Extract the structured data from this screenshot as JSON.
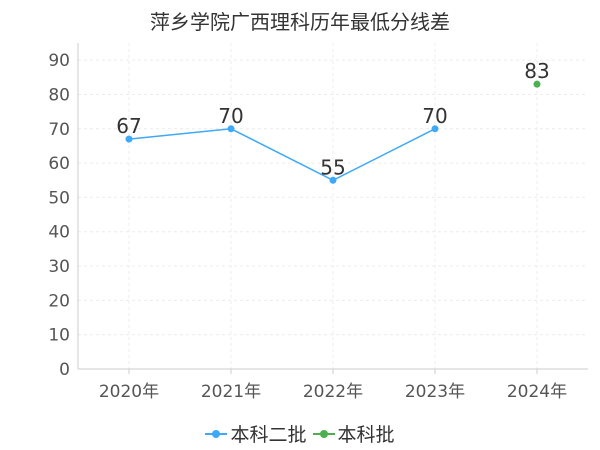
{
  "chart_data": {
    "type": "line",
    "title": "萍乡学院广西理科历年最低分线差",
    "categories": [
      "2020年",
      "2021年",
      "2022年",
      "2023年",
      "2024年"
    ],
    "ylim": [
      0,
      95
    ],
    "yticks": [
      0,
      10,
      20,
      30,
      40,
      50,
      60,
      70,
      80,
      90
    ],
    "grid": true,
    "legend_position": "bottom",
    "series": [
      {
        "name": "本科二批",
        "color": "#3fa9f5",
        "values": [
          67,
          70,
          55,
          70,
          null
        ]
      },
      {
        "name": "本科批",
        "color": "#4caf50",
        "values": [
          null,
          null,
          null,
          null,
          83
        ]
      }
    ]
  }
}
